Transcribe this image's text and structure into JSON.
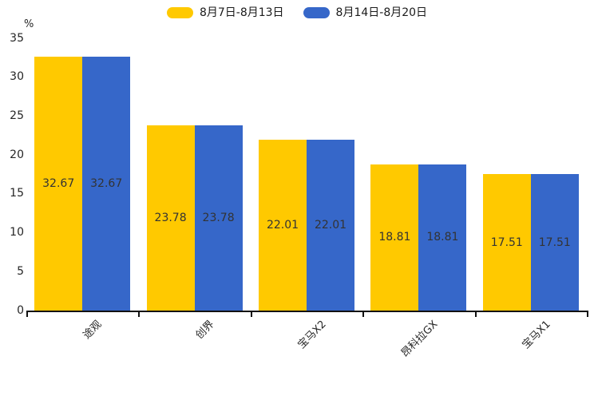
{
  "chart_data": {
    "type": "bar",
    "title": "",
    "xlabel": "",
    "ylabel": "%",
    "categories": [
      "途观",
      "创界",
      "宝马X2",
      "昂科拉GX",
      "宝马X1"
    ],
    "series": [
      {
        "name": "8月7日-8月13日",
        "color": "#FFC900",
        "values": [
          32.67,
          23.78,
          22.01,
          18.81,
          17.51
        ]
      },
      {
        "name": "8月14日-8月20日",
        "color": "#3667C9",
        "values": [
          32.67,
          23.78,
          22.01,
          18.81,
          17.51
        ]
      }
    ],
    "ylim": [
      0,
      35
    ],
    "yticks": [
      0,
      5,
      10,
      15,
      20,
      25,
      30,
      35
    ],
    "grid": false,
    "legend_position": "top-center",
    "value_labels": "inside-center",
    "axis_color": "#111111",
    "text_color": "#262626",
    "value_label_color": "#333333"
  }
}
